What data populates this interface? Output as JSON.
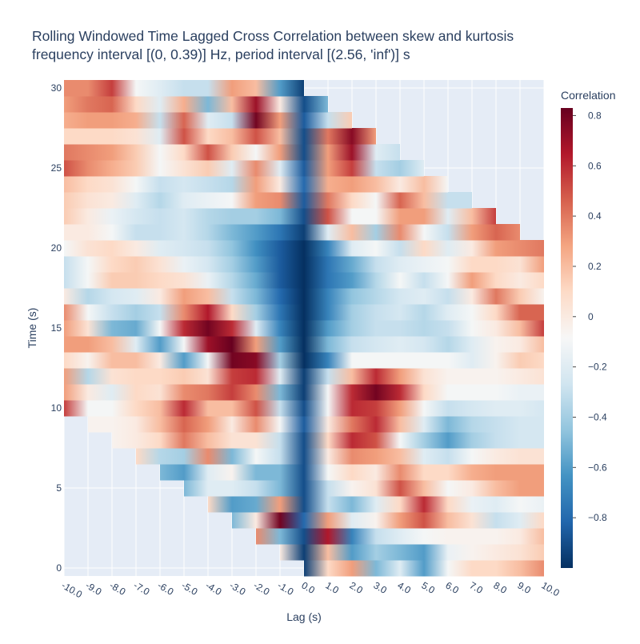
{
  "chart_data": {
    "type": "heatmap",
    "title": [
      "Rolling Windowed Time Lagged Cross Correlation between skew and kurtosis",
      "frequency interval [(0, 0.39)] Hz, period interval [(2.56, 'inf')] s"
    ],
    "xlabel": "Lag (s)",
    "ylabel": "Time (s)",
    "x": [
      -10,
      -9,
      -8,
      -7,
      -6,
      -5,
      -4,
      -3,
      -2,
      -1,
      0,
      1,
      2,
      3,
      4,
      5,
      6,
      7,
      8,
      9,
      10
    ],
    "y": [
      0,
      1,
      2,
      3,
      4,
      5,
      6,
      7,
      8,
      9,
      10,
      11,
      12,
      13,
      14,
      15,
      16,
      17,
      18,
      19,
      20,
      21,
      22,
      23,
      24,
      25,
      26,
      27,
      28,
      29,
      30
    ],
    "xlim": [
      -10,
      10
    ],
    "ylim": [
      -0.5,
      30.5
    ],
    "x_tick_labels": [
      "-10.0",
      "-9.0",
      "-8.0",
      "-7.0",
      "-6.0",
      "-5.0",
      "-4.0",
      "-3.0",
      "-2.0",
      "-1.0",
      "0.0",
      "1.0",
      "2.0",
      "3.0",
      "4.0",
      "5.0",
      "6.0",
      "7.0",
      "8.0",
      "9.0",
      "10.0"
    ],
    "y_ticks": [
      0,
      5,
      10,
      15,
      20,
      25,
      30
    ],
    "y_tick_labels": [
      "0",
      "5",
      "10",
      "15",
      "20",
      "25",
      "30"
    ],
    "colorbar": {
      "title": "Correlation",
      "zmin": -1.0,
      "zmax": 0.83,
      "ticks": [
        0.8,
        0.6,
        0.4,
        0.2,
        0,
        -0.2,
        -0.4,
        -0.6,
        -0.8
      ],
      "tick_labels": [
        "0.8",
        "0.6",
        "0.4",
        "0.2",
        "0",
        "−0.2",
        "−0.4",
        "−0.6",
        "−0.8"
      ]
    },
    "colorscale": [
      "#053061",
      "#2166ac",
      "#4393c3",
      "#92c5de",
      "#d1e5f0",
      "#f7f7f7",
      "#fddbc7",
      "#f4a582",
      "#d6604d",
      "#b2182b",
      "#67001f"
    ],
    "grid": true,
    "z": [
      [
        null,
        null,
        null,
        null,
        null,
        null,
        null,
        null,
        null,
        null,
        -0.95,
        0.1,
        0.3,
        -0.5,
        -0.2,
        -0.6,
        -0.1,
        0.1,
        0.1,
        0.2,
        0.35
      ],
      [
        null,
        null,
        null,
        null,
        null,
        null,
        null,
        null,
        null,
        0.0,
        -0.95,
        0.2,
        -0.6,
        -0.4,
        -0.5,
        -0.6,
        -0.15,
        -0.05,
        0.0,
        0.05,
        0.15
      ],
      [
        null,
        null,
        null,
        null,
        null,
        null,
        null,
        null,
        0.35,
        -0.5,
        -0.9,
        0.65,
        -0.7,
        -0.3,
        -0.2,
        -0.1,
        -0.05,
        -0.05,
        -0.05,
        0.0,
        0.2
      ],
      [
        null,
        null,
        null,
        null,
        null,
        null,
        null,
        -0.5,
        0.0,
        0.8,
        -0.8,
        0.3,
        -0.2,
        -0.05,
        0.3,
        0.5,
        0.2,
        0.05,
        -0.3,
        -0.2,
        0.1
      ],
      [
        null,
        null,
        null,
        null,
        null,
        null,
        0.1,
        -0.6,
        -0.55,
        0.3,
        -0.9,
        -0.3,
        -0.5,
        -0.2,
        0.1,
        0.6,
        0.1,
        -0.15,
        -0.2,
        -0.1,
        -0.15
      ],
      [
        null,
        null,
        null,
        null,
        null,
        -0.5,
        -0.2,
        -0.2,
        -0.3,
        -0.5,
        -0.9,
        -0.3,
        -0.05,
        0.05,
        0.5,
        0.2,
        -0.1,
        0.0,
        0.2,
        0.3,
        0.3
      ],
      [
        null,
        null,
        null,
        null,
        -0.5,
        -0.6,
        -0.2,
        -0.05,
        -0.5,
        -0.5,
        -0.9,
        -0.1,
        0.1,
        0.0,
        0.35,
        0.1,
        0.1,
        0.25,
        0.3,
        0.3,
        0.3
      ],
      [
        null,
        null,
        null,
        0.1,
        -0.35,
        -0.4,
        0.35,
        -0.5,
        -0.1,
        -0.3,
        -0.9,
        0.0,
        0.35,
        0.3,
        0.2,
        -0.2,
        -0.3,
        -0.1,
        0.0,
        0.05,
        0.05
      ],
      [
        null,
        null,
        -0.05,
        0.0,
        0.1,
        0.4,
        0.2,
        0.05,
        0.05,
        -0.3,
        -0.9,
        0.1,
        0.6,
        0.5,
        -0.1,
        -0.4,
        -0.6,
        -0.4,
        -0.3,
        -0.25,
        -0.25
      ],
      [
        null,
        -0.05,
        -0.05,
        0.0,
        0.2,
        0.45,
        0.3,
        0.0,
        0.35,
        -0.1,
        -0.85,
        0.0,
        0.4,
        0.6,
        0.2,
        -0.2,
        -0.5,
        -0.35,
        -0.3,
        -0.25,
        -0.25
      ],
      [
        0.55,
        -0.1,
        -0.1,
        0.1,
        0.2,
        0.6,
        0.2,
        0.2,
        0.5,
        -0.3,
        -0.9,
        -0.1,
        0.6,
        0.55,
        0.3,
        -0.1,
        -0.3,
        -0.25,
        -0.2,
        -0.2,
        -0.25
      ],
      [
        0.3,
        0.0,
        -0.2,
        0.1,
        0.05,
        0.35,
        0.4,
        0.55,
        0.35,
        -0.5,
        -0.95,
        -0.1,
        0.6,
        0.8,
        0.6,
        0.1,
        -0.1,
        -0.1,
        -0.1,
        -0.15,
        -0.15
      ],
      [
        0.3,
        -0.35,
        0.05,
        0.1,
        0.1,
        0.15,
        0.05,
        0.55,
        0.6,
        -0.2,
        -0.95,
        -0.3,
        0.2,
        0.6,
        0.3,
        0.05,
        -0.05,
        -0.05,
        -0.05,
        0.0,
        0.05
      ],
      [
        0.1,
        -0.05,
        0.2,
        0.2,
        0.0,
        -0.6,
        -0.1,
        0.8,
        0.75,
        -0.4,
        -1.0,
        -0.7,
        -0.1,
        -0.1,
        -0.1,
        -0.1,
        -0.1,
        -0.2,
        -0.05,
        0.15,
        0.1
      ],
      [
        0.3,
        0.3,
        0.2,
        -0.2,
        -0.6,
        -0.1,
        0.7,
        0.85,
        0.3,
        -0.6,
        -1.0,
        -0.5,
        -0.3,
        -0.25,
        -0.2,
        -0.25,
        -0.35,
        -0.2,
        -0.05,
        0.0,
        0.2
      ],
      [
        0.3,
        0.05,
        -0.5,
        -0.55,
        -0.1,
        0.6,
        0.8,
        0.6,
        -0.2,
        -0.7,
        -1.0,
        -0.6,
        -0.4,
        -0.3,
        -0.3,
        -0.35,
        -0.3,
        -0.1,
        0.0,
        0.2,
        0.55
      ],
      [
        0.35,
        -0.1,
        -0.3,
        -0.4,
        -0.3,
        0.35,
        0.65,
        0.1,
        -0.4,
        -0.75,
        -1.0,
        -0.7,
        -0.4,
        -0.3,
        -0.25,
        -0.35,
        -0.2,
        -0.1,
        0.1,
        0.45,
        0.45
      ],
      [
        0.0,
        -0.35,
        -0.25,
        -0.2,
        0.0,
        0.3,
        0.2,
        -0.3,
        -0.5,
        -0.8,
        -1.0,
        -0.7,
        -0.45,
        -0.35,
        -0.25,
        -0.2,
        -0.3,
        0.0,
        0.4,
        0.15,
        -0.05
      ],
      [
        -0.3,
        -0.1,
        0.15,
        0.15,
        0.1,
        0.05,
        -0.15,
        -0.35,
        -0.55,
        -0.85,
        -1.0,
        -0.75,
        -0.6,
        -0.35,
        -0.1,
        -0.3,
        -0.1,
        0.3,
        0.1,
        0.0,
        0.1
      ],
      [
        -0.3,
        -0.1,
        0.1,
        0.15,
        0.05,
        -0.15,
        -0.25,
        -0.4,
        -0.6,
        -0.85,
        -1.0,
        -0.75,
        -0.55,
        -0.3,
        -0.2,
        -0.15,
        -0.1,
        0.1,
        0.1,
        0.05,
        0.3
      ],
      [
        -0.1,
        0.05,
        0.1,
        0.0,
        -0.2,
        -0.25,
        -0.3,
        -0.45,
        -0.65,
        -0.85,
        -1.0,
        -0.7,
        -0.2,
        -0.1,
        -0.3,
        0.1,
        -0.2,
        0.0,
        0.3,
        0.35,
        0.4
      ],
      [
        0.0,
        0.0,
        -0.1,
        -0.3,
        -0.3,
        -0.25,
        -0.35,
        -0.5,
        -0.6,
        -0.75,
        -0.95,
        -0.2,
        0.2,
        -0.4,
        0.35,
        -0.1,
        -0.3,
        0.3,
        0.45,
        0.35,
        null
      ],
      [
        0.15,
        0.0,
        -0.15,
        -0.25,
        -0.3,
        -0.25,
        -0.35,
        -0.4,
        -0.4,
        -0.5,
        -0.9,
        0.5,
        -0.1,
        -0.1,
        0.3,
        0.3,
        -0.2,
        0.2,
        0.55,
        null,
        null
      ],
      [
        0.15,
        0.05,
        0.0,
        -0.2,
        -0.35,
        -0.2,
        -0.15,
        -0.1,
        0.3,
        0.35,
        -0.85,
        0.4,
        0.1,
        -0.1,
        0.45,
        0.2,
        -0.3,
        -0.3,
        null,
        null,
        null
      ],
      [
        0.2,
        0.1,
        0.05,
        -0.1,
        -0.3,
        -0.25,
        -0.3,
        -0.35,
        0.3,
        0.0,
        -0.8,
        0.25,
        0.3,
        0.2,
        0.0,
        0.2,
        -0.1,
        null,
        null,
        null,
        null
      ],
      [
        0.5,
        0.35,
        0.25,
        0.15,
        -0.1,
        0.05,
        0.15,
        -0.2,
        0.35,
        -0.2,
        -0.85,
        0.3,
        0.55,
        -0.3,
        -0.4,
        -0.2,
        null,
        null,
        null,
        null,
        null
      ],
      [
        0.4,
        0.35,
        0.3,
        0.15,
        -0.1,
        0.1,
        0.5,
        0.15,
        -0.1,
        0.3,
        -0.9,
        0.3,
        0.7,
        -0.2,
        -0.3,
        null,
        null,
        null,
        null,
        null,
        null
      ],
      [
        0.1,
        0.1,
        0.1,
        0.05,
        -0.2,
        0.5,
        0.1,
        0.2,
        0.5,
        0.2,
        -0.9,
        0.4,
        0.75,
        0.3,
        null,
        null,
        null,
        null,
        null,
        null,
        null
      ],
      [
        0.25,
        0.3,
        0.3,
        0.25,
        -0.3,
        0.45,
        -0.2,
        -0.3,
        0.8,
        0.3,
        -0.85,
        -0.3,
        0.15,
        null,
        null,
        null,
        null,
        null,
        null,
        null,
        null
      ],
      [
        0.3,
        0.4,
        0.45,
        0.1,
        -0.2,
        0.25,
        -0.5,
        0.2,
        0.7,
        0.0,
        -0.9,
        -0.5,
        null,
        null,
        null,
        null,
        null,
        null,
        null,
        null,
        null
      ],
      [
        0.35,
        0.35,
        0.55,
        -0.1,
        -0.2,
        -0.3,
        -0.3,
        0.3,
        0.2,
        -0.6,
        -0.95,
        null,
        null,
        null,
        null,
        null,
        null,
        null,
        null,
        null,
        null
      ]
    ]
  }
}
